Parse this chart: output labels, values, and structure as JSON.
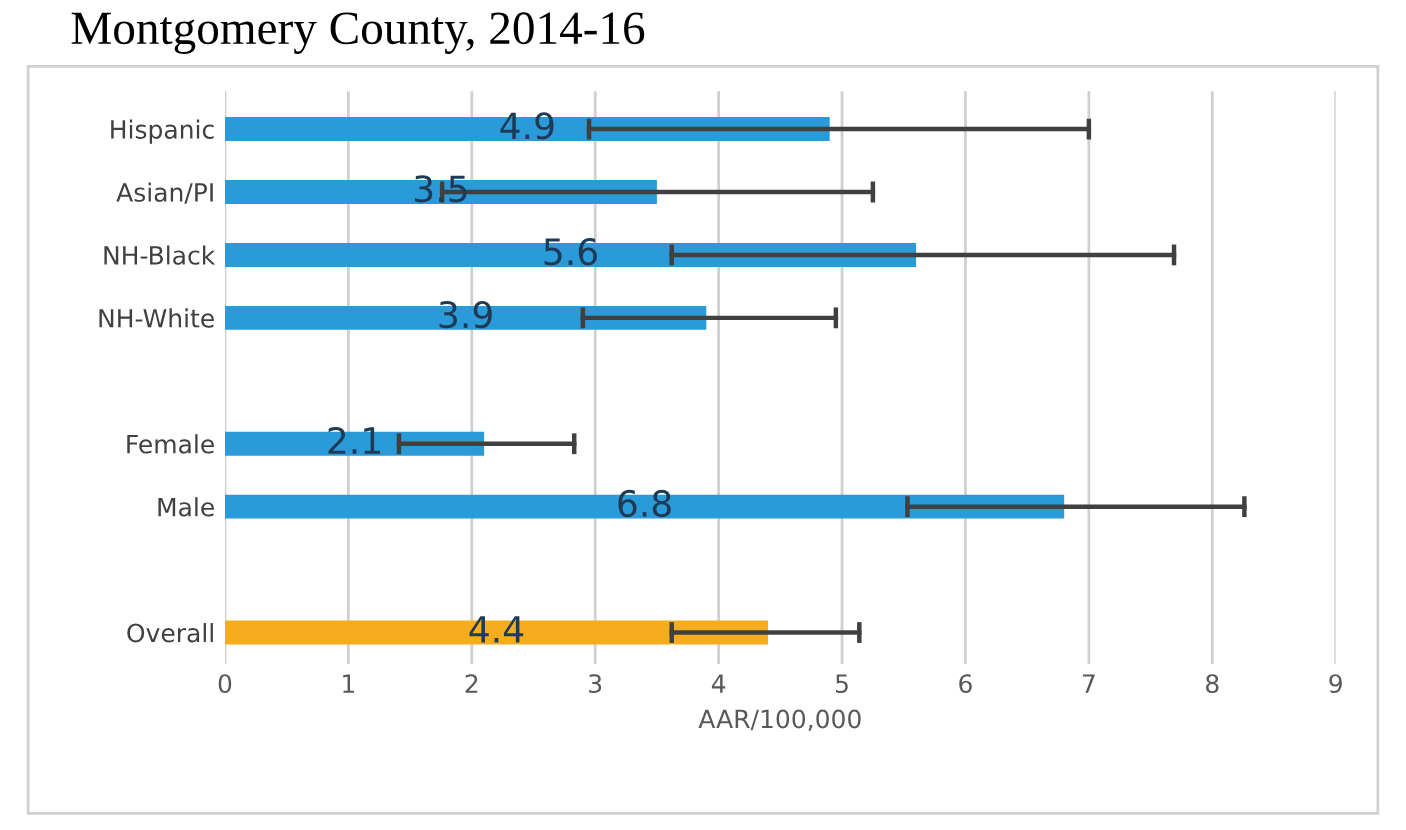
{
  "chart_data": {
    "type": "bar",
    "orientation": "horizontal",
    "title": "Montgomery County, 2014-16",
    "xlabel": "AAR/100,000",
    "categories": [
      "Hispanic",
      "Asian/PI",
      "NH-Black",
      "NH-White",
      null,
      "Female",
      "Male",
      null,
      "Overall"
    ],
    "values": [
      4.9,
      3.5,
      5.6,
      3.9,
      null,
      2.1,
      6.8,
      null,
      4.4
    ],
    "colors": [
      "#2a9ad8",
      "#2a9ad8",
      "#2a9ad8",
      "#2a9ad8",
      null,
      "#2a9ad8",
      "#2a9ad8",
      null,
      "#f5ad1f"
    ],
    "errors": [
      [
        2.95,
        7.0
      ],
      [
        1.76,
        5.25
      ],
      [
        3.62,
        7.69
      ],
      [
        2.9,
        4.95
      ],
      null,
      [
        1.41,
        2.83
      ],
      [
        5.53,
        8.26
      ],
      null,
      [
        3.62,
        5.14
      ]
    ],
    "data_labels": true,
    "xlim": [
      0,
      9
    ],
    "xticks": [
      0,
      1,
      2,
      3,
      4,
      5,
      6,
      7,
      8,
      9
    ],
    "grid": "x"
  }
}
